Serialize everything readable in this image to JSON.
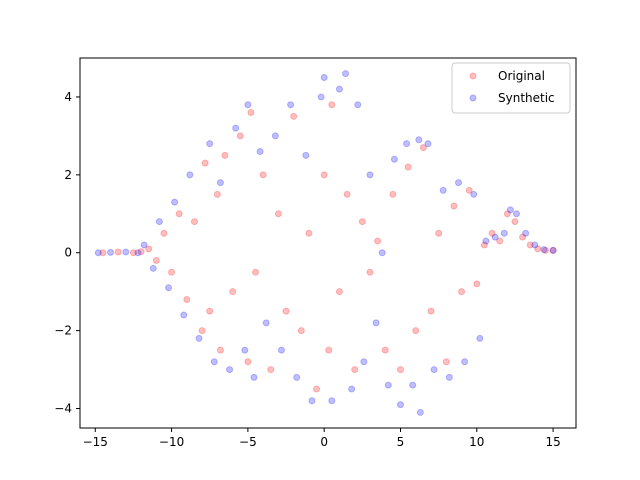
{
  "chart_data": {
    "type": "scatter",
    "title": "",
    "xlabel": "",
    "ylabel": "",
    "xlim": [
      -16.0,
      16.5
    ],
    "ylim": [
      -4.5,
      5.0
    ],
    "xticks": [
      -15,
      -10,
      -5,
      0,
      5,
      10,
      15
    ],
    "yticks": [
      -4,
      -2,
      0,
      2,
      4
    ],
    "grid": false,
    "legend": {
      "placement": "top-right"
    },
    "series": [
      {
        "name": "Original",
        "color": "#ff0000",
        "alpha": 0.25,
        "marker": "circle",
        "points": [
          [
            -14.5,
            0.0
          ],
          [
            -13.5,
            0.02
          ],
          [
            -12.5,
            0.0
          ],
          [
            -12.0,
            0.03
          ],
          [
            -11.5,
            0.1
          ],
          [
            -11.0,
            -0.2
          ],
          [
            -10.5,
            0.5
          ],
          [
            -10.0,
            -0.5
          ],
          [
            -9.5,
            1.0
          ],
          [
            -9.0,
            -1.2
          ],
          [
            -8.5,
            0.8
          ],
          [
            -8.0,
            -2.0
          ],
          [
            -7.8,
            2.3
          ],
          [
            -7.5,
            -1.5
          ],
          [
            -7.0,
            1.5
          ],
          [
            -6.8,
            -2.5
          ],
          [
            -6.5,
            2.5
          ],
          [
            -6.0,
            -1.0
          ],
          [
            -5.5,
            3.0
          ],
          [
            -5.0,
            -2.8
          ],
          [
            -4.8,
            3.6
          ],
          [
            -4.5,
            -0.5
          ],
          [
            -4.0,
            2.0
          ],
          [
            -3.5,
            -3.0
          ],
          [
            -3.0,
            1.0
          ],
          [
            -2.5,
            -1.5
          ],
          [
            -2.0,
            3.5
          ],
          [
            -1.5,
            -2.0
          ],
          [
            -1.0,
            0.5
          ],
          [
            -0.5,
            -3.5
          ],
          [
            0.0,
            2.0
          ],
          [
            0.3,
            -2.5
          ],
          [
            0.5,
            3.8
          ],
          [
            1.0,
            -1.0
          ],
          [
            1.5,
            1.5
          ],
          [
            2.0,
            -3.0
          ],
          [
            2.5,
            0.8
          ],
          [
            3.0,
            -0.5
          ],
          [
            3.5,
            0.3
          ],
          [
            4.0,
            -2.5
          ],
          [
            4.5,
            1.5
          ],
          [
            5.0,
            -3.0
          ],
          [
            5.5,
            2.2
          ],
          [
            6.0,
            -2.0
          ],
          [
            6.5,
            2.7
          ],
          [
            7.0,
            -1.5
          ],
          [
            7.5,
            0.5
          ],
          [
            8.0,
            -2.8
          ],
          [
            8.5,
            1.2
          ],
          [
            9.0,
            -1.0
          ],
          [
            9.5,
            1.6
          ],
          [
            10.0,
            -0.8
          ],
          [
            10.5,
            0.2
          ],
          [
            11.0,
            0.5
          ],
          [
            11.5,
            0.3
          ],
          [
            12.0,
            1.0
          ],
          [
            12.5,
            0.8
          ],
          [
            13.0,
            0.4
          ],
          [
            13.5,
            0.2
          ],
          [
            14.0,
            0.1
          ],
          [
            14.5,
            0.06
          ],
          [
            15.0,
            0.06
          ]
        ]
      },
      {
        "name": "Synthetic",
        "color": "#0000ff",
        "alpha": 0.25,
        "marker": "circle",
        "points": [
          [
            -14.8,
            0.0
          ],
          [
            -14.0,
            0.01
          ],
          [
            -13.0,
            0.02
          ],
          [
            -12.2,
            0.0
          ],
          [
            -11.8,
            0.2
          ],
          [
            -11.2,
            -0.4
          ],
          [
            -10.8,
            0.8
          ],
          [
            -10.2,
            -0.9
          ],
          [
            -9.8,
            1.3
          ],
          [
            -9.2,
            -1.6
          ],
          [
            -8.8,
            2.0
          ],
          [
            -8.2,
            -2.2
          ],
          [
            -7.5,
            2.8
          ],
          [
            -7.2,
            -2.8
          ],
          [
            -6.8,
            1.8
          ],
          [
            -6.2,
            -3.0
          ],
          [
            -5.8,
            3.2
          ],
          [
            -5.2,
            -2.5
          ],
          [
            -5.0,
            3.8
          ],
          [
            -4.6,
            -3.2
          ],
          [
            -4.2,
            2.6
          ],
          [
            -3.8,
            -1.8
          ],
          [
            -3.2,
            3.0
          ],
          [
            -2.8,
            -2.5
          ],
          [
            -2.2,
            3.8
          ],
          [
            -1.8,
            -3.2
          ],
          [
            -1.2,
            2.5
          ],
          [
            -0.8,
            -3.8
          ],
          [
            -0.2,
            4.0
          ],
          [
            0.0,
            4.5
          ],
          [
            0.5,
            -3.8
          ],
          [
            1.0,
            4.2
          ],
          [
            1.4,
            4.6
          ],
          [
            1.8,
            -3.5
          ],
          [
            2.2,
            3.8
          ],
          [
            2.6,
            -2.8
          ],
          [
            3.0,
            2.0
          ],
          [
            3.4,
            -1.8
          ],
          [
            3.8,
            0.0
          ],
          [
            4.2,
            -3.4
          ],
          [
            4.6,
            2.4
          ],
          [
            5.0,
            -3.9
          ],
          [
            5.4,
            2.8
          ],
          [
            5.8,
            -3.4
          ],
          [
            6.2,
            2.9
          ],
          [
            6.3,
            -4.1
          ],
          [
            6.8,
            2.8
          ],
          [
            7.2,
            -3.0
          ],
          [
            7.8,
            1.6
          ],
          [
            8.2,
            -3.2
          ],
          [
            8.8,
            1.8
          ],
          [
            9.2,
            -2.8
          ],
          [
            9.8,
            1.5
          ],
          [
            10.2,
            -2.2
          ],
          [
            10.6,
            0.3
          ],
          [
            11.2,
            0.4
          ],
          [
            11.8,
            0.5
          ],
          [
            12.2,
            1.1
          ],
          [
            12.6,
            1.0
          ],
          [
            13.2,
            0.5
          ],
          [
            13.8,
            0.2
          ],
          [
            14.4,
            0.08
          ],
          [
            15.0,
            0.06
          ]
        ]
      }
    ]
  }
}
